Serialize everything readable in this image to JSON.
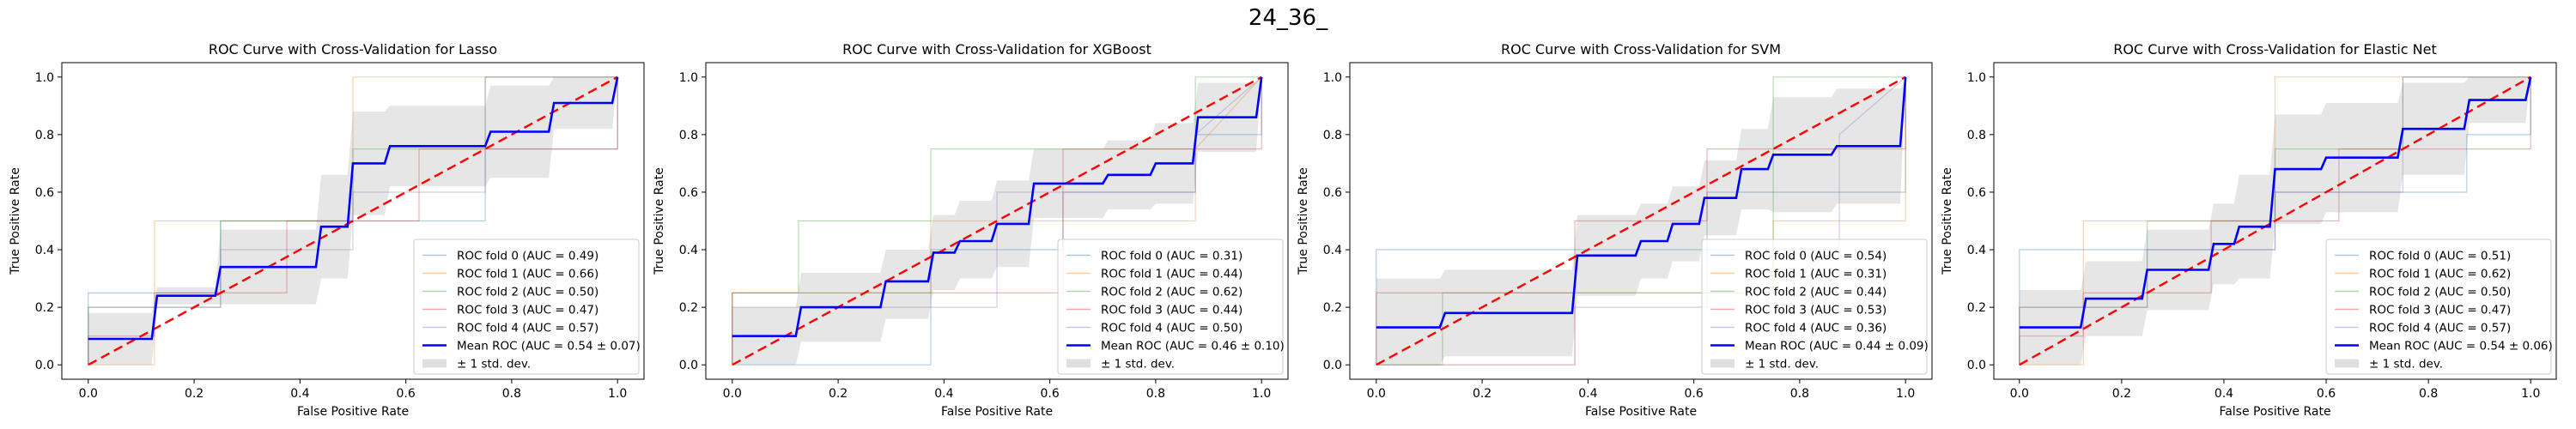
{
  "figure": {
    "suptitle": "24_36_",
    "colors": {
      "fold_0": "#1f77b4",
      "fold_1": "#ff7f0e",
      "fold_2": "#2ca02c",
      "fold_3": "#d62728",
      "fold_4": "#9467bd",
      "mean": "#0000ff",
      "chance": "#ff0000",
      "std_band": "#808080"
    }
  },
  "chart_data": [
    {
      "type": "line",
      "title": "ROC Curve with Cross-Validation for Lasso",
      "xlabel": "False Positive Rate",
      "ylabel": "True Positive Rate",
      "xlim": [
        -0.05,
        1.05
      ],
      "ylim": [
        -0.05,
        1.05
      ],
      "xticks": [
        "0.0",
        "0.2",
        "0.4",
        "0.6",
        "0.8",
        "1.0"
      ],
      "yticks": [
        "0.0",
        "0.2",
        "0.4",
        "0.6",
        "0.8",
        "1.0"
      ],
      "grid": false,
      "legend_position": "lower-right",
      "legend": [
        "ROC fold 0 (AUC = 0.49)",
        "ROC fold 1 (AUC = 0.66)",
        "ROC fold 2 (AUC = 0.50)",
        "ROC fold 3 (AUC = 0.47)",
        "ROC fold 4 (AUC = 0.57)",
        "Mean ROC (AUC = 0.54 ± 0.07)",
        "± 1 std. dev."
      ],
      "folds": [
        {
          "x": [
            0,
            0,
            0.125,
            0.125,
            0.25,
            0.25,
            0.5,
            0.5,
            0.75,
            0.75,
            1,
            1
          ],
          "y": [
            0,
            0.25,
            0.25,
            0.25,
            0.25,
            0.5,
            0.5,
            0.5,
            0.5,
            0.75,
            0.75,
            1
          ]
        },
        {
          "x": [
            0,
            0,
            0.125,
            0.125,
            0.5,
            0.5,
            0.875,
            0.875,
            1
          ],
          "y": [
            0,
            0,
            0,
            0.5,
            0.5,
            1,
            1,
            1,
            1
          ]
        },
        {
          "x": [
            0,
            0,
            0.125,
            0.25,
            0.25,
            0.5,
            0.5,
            0.75,
            0.75,
            1
          ],
          "y": [
            0,
            0.2,
            0.2,
            0.2,
            0.5,
            0.5,
            0.75,
            0.75,
            1,
            1
          ]
        },
        {
          "x": [
            0,
            0,
            0.125,
            0.125,
            0.375,
            0.375,
            0.625,
            0.625,
            1,
            1
          ],
          "y": [
            0,
            0.1,
            0.1,
            0.25,
            0.25,
            0.5,
            0.5,
            0.75,
            0.75,
            1
          ]
        },
        {
          "x": [
            0,
            0,
            0.125,
            0.125,
            0.25,
            0.25,
            0.5,
            0.5,
            0.75,
            0.75,
            1
          ],
          "y": [
            0,
            0.2,
            0.2,
            0.2,
            0.2,
            0.4,
            0.4,
            0.6,
            0.6,
            1,
            1
          ]
        }
      ],
      "mean": {
        "x": [
          0,
          0.12,
          0.13,
          0.24,
          0.25,
          0.43,
          0.44,
          0.49,
          0.5,
          0.56,
          0.57,
          0.75,
          0.76,
          0.87,
          0.88,
          0.99,
          1
        ],
        "y": [
          0.09,
          0.09,
          0.24,
          0.24,
          0.34,
          0.34,
          0.48,
          0.48,
          0.7,
          0.7,
          0.76,
          0.76,
          0.81,
          0.81,
          0.91,
          0.91,
          1
        ],
        "upper": [
          0.18,
          0.18,
          0.27,
          0.27,
          0.47,
          0.47,
          0.66,
          0.66,
          0.88,
          0.88,
          0.9,
          0.9,
          0.97,
          0.97,
          1,
          1,
          1
        ],
        "lower": [
          0,
          0,
          0.21,
          0.21,
          0.21,
          0.21,
          0.3,
          0.3,
          0.52,
          0.52,
          0.62,
          0.62,
          0.65,
          0.65,
          0.82,
          0.82,
          1
        ]
      }
    },
    {
      "type": "line",
      "title": "ROC Curve with Cross-Validation for XGBoost",
      "xlabel": "False Positive Rate",
      "ylabel": "True Positive Rate",
      "xlim": [
        -0.05,
        1.05
      ],
      "ylim": [
        -0.05,
        1.05
      ],
      "xticks": [
        "0.0",
        "0.2",
        "0.4",
        "0.6",
        "0.8",
        "1.0"
      ],
      "yticks": [
        "0.0",
        "0.2",
        "0.4",
        "0.6",
        "0.8",
        "1.0"
      ],
      "grid": false,
      "legend_position": "lower-right",
      "legend": [
        "ROC fold 0 (AUC = 0.31)",
        "ROC fold 1 (AUC = 0.44)",
        "ROC fold 2 (AUC = 0.62)",
        "ROC fold 3 (AUC = 0.44)",
        "ROC fold 4 (AUC = 0.50)",
        "Mean ROC (AUC = 0.46 ± 0.10)",
        "± 1 std. dev."
      ],
      "folds": [
        {
          "x": [
            0,
            0,
            0.375,
            0.375,
            0.625,
            0.625,
            0.875,
            0.875,
            1,
            1
          ],
          "y": [
            0,
            0,
            0,
            0.4,
            0.4,
            0.6,
            0.6,
            0.8,
            0.8,
            1
          ]
        },
        {
          "x": [
            0,
            0,
            0.375,
            0.375,
            0.875,
            0.875,
            1
          ],
          "y": [
            0,
            0.25,
            0.25,
            0.5,
            0.5,
            0.75,
            1
          ]
        },
        {
          "x": [
            0,
            0,
            0.125,
            0.125,
            0.375,
            0.375,
            0.875,
            0.875,
            1
          ],
          "y": [
            0,
            0.25,
            0.25,
            0.5,
            0.5,
            0.75,
            0.75,
            1,
            1
          ]
        },
        {
          "x": [
            0,
            0,
            0.375,
            0.375,
            0.625,
            0.625,
            1,
            1
          ],
          "y": [
            0,
            0.25,
            0.25,
            0.25,
            0.25,
            0.75,
            0.75,
            1
          ]
        },
        {
          "x": [
            0,
            0,
            0.125,
            0.125,
            0.5,
            0.5,
            0.875,
            0.875,
            1
          ],
          "y": [
            0,
            0.2,
            0.2,
            0.2,
            0.2,
            0.6,
            0.6,
            0.8,
            1
          ]
        }
      ],
      "mean": {
        "x": [
          0,
          0.12,
          0.13,
          0.28,
          0.29,
          0.37,
          0.38,
          0.42,
          0.43,
          0.49,
          0.5,
          0.56,
          0.57,
          0.7,
          0.71,
          0.79,
          0.8,
          0.87,
          0.88,
          0.99,
          1
        ],
        "y": [
          0.1,
          0.1,
          0.2,
          0.2,
          0.29,
          0.29,
          0.39,
          0.39,
          0.43,
          0.43,
          0.49,
          0.49,
          0.63,
          0.63,
          0.66,
          0.66,
          0.7,
          0.7,
          0.86,
          0.86,
          1
        ],
        "upper": [
          0.2,
          0.2,
          0.32,
          0.32,
          0.4,
          0.4,
          0.52,
          0.52,
          0.57,
          0.57,
          0.64,
          0.64,
          0.75,
          0.75,
          0.78,
          0.78,
          0.84,
          0.84,
          0.98,
          0.98,
          1
        ],
        "lower": [
          0,
          0,
          0.08,
          0.08,
          0.16,
          0.16,
          0.26,
          0.26,
          0.3,
          0.3,
          0.34,
          0.34,
          0.51,
          0.51,
          0.54,
          0.54,
          0.56,
          0.56,
          0.74,
          0.74,
          1
        ]
      }
    },
    {
      "type": "line",
      "title": "ROC Curve with Cross-Validation for SVM",
      "xlabel": "False Positive Rate",
      "ylabel": "True Positive Rate",
      "xlim": [
        -0.05,
        1.05
      ],
      "ylim": [
        -0.05,
        1.05
      ],
      "xticks": [
        "0.0",
        "0.2",
        "0.4",
        "0.6",
        "0.8",
        "1.0"
      ],
      "yticks": [
        "0.0",
        "0.2",
        "0.4",
        "0.6",
        "0.8",
        "1.0"
      ],
      "grid": false,
      "legend_position": "lower-right",
      "legend": [
        "ROC fold 0 (AUC = 0.54)",
        "ROC fold 1 (AUC = 0.31)",
        "ROC fold 2 (AUC = 0.44)",
        "ROC fold 3 (AUC = 0.53)",
        "ROC fold 4 (AUC = 0.36)",
        "Mean ROC (AUC = 0.44 ± 0.09)",
        "± 1 std. dev."
      ],
      "folds": [
        {
          "x": [
            0,
            0,
            0.375,
            0.375,
            0.625,
            0.625,
            0.875,
            0.875,
            1,
            1
          ],
          "y": [
            0,
            0.4,
            0.4,
            0.4,
            0.4,
            0.6,
            0.6,
            0.6,
            0.6,
            1
          ]
        },
        {
          "x": [
            0,
            0,
            0.375,
            0.375,
            0.75,
            0.75,
            1,
            1
          ],
          "y": [
            0,
            0,
            0,
            0.25,
            0.25,
            0.5,
            0.5,
            1
          ]
        },
        {
          "x": [
            0,
            0,
            0.125,
            0.125,
            0.75,
            0.75,
            1,
            1
          ],
          "y": [
            0,
            0,
            0,
            0.25,
            0.25,
            1,
            1,
            1
          ]
        },
        {
          "x": [
            0,
            0,
            0.375,
            0.375,
            0.625,
            0.625,
            1,
            1
          ],
          "y": [
            0,
            0.25,
            0.25,
            0.5,
            0.5,
            0.75,
            0.75,
            1
          ]
        },
        {
          "x": [
            0,
            0,
            0.375,
            0.375,
            0.625,
            0.625,
            0.875,
            0.875,
            1
          ],
          "y": [
            0,
            0,
            0,
            0.2,
            0.2,
            0.4,
            0.4,
            0.8,
            1
          ]
        }
      ],
      "mean": {
        "x": [
          0,
          0.12,
          0.13,
          0.37,
          0.38,
          0.49,
          0.5,
          0.55,
          0.56,
          0.61,
          0.62,
          0.68,
          0.69,
          0.74,
          0.75,
          0.86,
          0.87,
          0.99,
          1
        ],
        "y": [
          0.13,
          0.13,
          0.18,
          0.18,
          0.38,
          0.38,
          0.43,
          0.43,
          0.49,
          0.49,
          0.58,
          0.58,
          0.68,
          0.68,
          0.73,
          0.73,
          0.76,
          0.76,
          1
        ],
        "upper": [
          0.3,
          0.3,
          0.33,
          0.33,
          0.52,
          0.52,
          0.56,
          0.56,
          0.62,
          0.62,
          0.71,
          0.71,
          0.82,
          0.82,
          0.93,
          0.93,
          0.96,
          0.96,
          1
        ],
        "lower": [
          0,
          0,
          0.03,
          0.03,
          0.24,
          0.24,
          0.3,
          0.3,
          0.36,
          0.36,
          0.45,
          0.45,
          0.54,
          0.54,
          0.53,
          0.53,
          0.56,
          0.56,
          1
        ]
      }
    },
    {
      "type": "line",
      "title": "ROC Curve with Cross-Validation for Elastic Net",
      "xlabel": "False Positive Rate",
      "ylabel": "True Positive Rate",
      "xlim": [
        -0.05,
        1.05
      ],
      "ylim": [
        -0.05,
        1.05
      ],
      "xticks": [
        "0.0",
        "0.2",
        "0.4",
        "0.6",
        "0.8",
        "1.0"
      ],
      "yticks": [
        "0.0",
        "0.2",
        "0.4",
        "0.6",
        "0.8",
        "1.0"
      ],
      "grid": false,
      "legend_position": "lower-right",
      "legend": [
        "ROC fold 0 (AUC = 0.51)",
        "ROC fold 1 (AUC = 0.62)",
        "ROC fold 2 (AUC = 0.50)",
        "ROC fold 3 (AUC = 0.47)",
        "ROC fold 4 (AUC = 0.57)",
        "Mean ROC (AUC = 0.54 ± 0.06)",
        "± 1 std. dev."
      ],
      "folds": [
        {
          "x": [
            0,
            0,
            0.25,
            0.25,
            0.5,
            0.5,
            0.875,
            0.875,
            1,
            1
          ],
          "y": [
            0,
            0.4,
            0.4,
            0.4,
            0.4,
            0.6,
            0.6,
            0.8,
            0.8,
            1
          ]
        },
        {
          "x": [
            0,
            0,
            0.125,
            0.125,
            0.5,
            0.5,
            1
          ],
          "y": [
            0,
            0,
            0,
            0.5,
            0.5,
            1,
            1
          ]
        },
        {
          "x": [
            0,
            0,
            0.25,
            0.25,
            0.5,
            0.5,
            0.75,
            0.75,
            1
          ],
          "y": [
            0,
            0.2,
            0.2,
            0.5,
            0.5,
            0.75,
            0.75,
            1,
            1
          ]
        },
        {
          "x": [
            0,
            0,
            0.125,
            0.125,
            0.375,
            0.375,
            0.625,
            0.625,
            1,
            1
          ],
          "y": [
            0,
            0.1,
            0.1,
            0.25,
            0.25,
            0.5,
            0.5,
            0.75,
            0.75,
            1
          ]
        },
        {
          "x": [
            0,
            0,
            0.125,
            0.125,
            0.25,
            0.25,
            0.5,
            0.5,
            0.75,
            0.75,
            1
          ],
          "y": [
            0,
            0.2,
            0.2,
            0.2,
            0.2,
            0.4,
            0.4,
            0.6,
            0.6,
            1,
            1
          ]
        }
      ],
      "mean": {
        "x": [
          0,
          0.12,
          0.13,
          0.24,
          0.25,
          0.37,
          0.38,
          0.42,
          0.43,
          0.49,
          0.5,
          0.59,
          0.6,
          0.74,
          0.75,
          0.87,
          0.88,
          0.99,
          1
        ],
        "y": [
          0.13,
          0.13,
          0.23,
          0.23,
          0.33,
          0.33,
          0.42,
          0.42,
          0.48,
          0.48,
          0.68,
          0.68,
          0.72,
          0.72,
          0.82,
          0.82,
          0.92,
          0.92,
          1
        ],
        "upper": [
          0.26,
          0.26,
          0.36,
          0.36,
          0.47,
          0.47,
          0.56,
          0.56,
          0.66,
          0.66,
          0.87,
          0.87,
          0.91,
          0.91,
          0.98,
          0.98,
          1,
          1,
          1
        ],
        "lower": [
          0,
          0,
          0.1,
          0.1,
          0.19,
          0.19,
          0.28,
          0.28,
          0.3,
          0.3,
          0.49,
          0.49,
          0.53,
          0.53,
          0.66,
          0.66,
          0.84,
          0.84,
          1
        ]
      }
    }
  ]
}
